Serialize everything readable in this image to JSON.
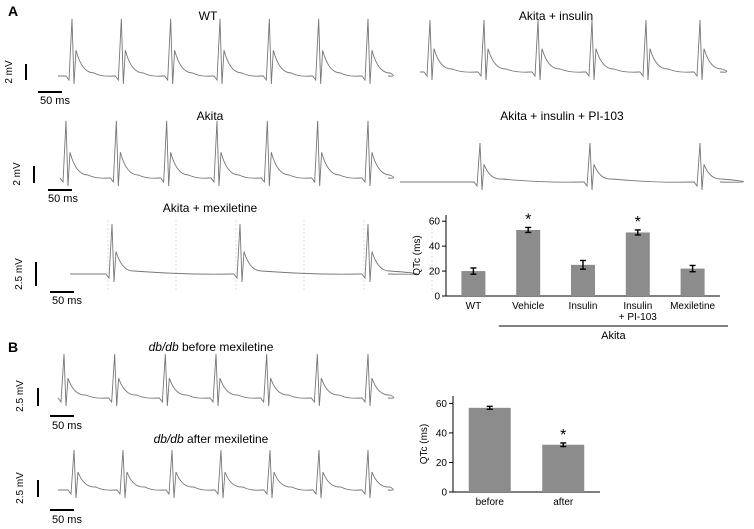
{
  "panels": {
    "A": {
      "letter": "A"
    },
    "B": {
      "letter": "B"
    }
  },
  "traces": [
    {
      "id": "wt",
      "title": "WT",
      "mv_label": "2 mV",
      "ms_label": "50 ms",
      "beats": 7,
      "spike_mv": 2.2,
      "gridlines": false
    },
    {
      "id": "akita-insulin",
      "title": "Akita + insulin",
      "mv_label": "",
      "ms_label": "",
      "beats": 6,
      "spike_mv": 2.0,
      "gridlines": false
    },
    {
      "id": "akita",
      "title": "Akita",
      "mv_label": "2 mV",
      "ms_label": "50 ms",
      "beats": 7,
      "spike_mv": 2.2,
      "gridlines": false
    },
    {
      "id": "akita-insulin-pi103",
      "title": "Akita + insulin + PI-103",
      "mv_label": "",
      "ms_label": "",
      "beats": 3,
      "spike_mv": 1.5,
      "gridlines": false
    },
    {
      "id": "akita-mexiletine",
      "title": "Akita + mexiletine",
      "mv_label": "2.5 mV",
      "ms_label": "50 ms",
      "beats": 3,
      "spike_mv": 2.5,
      "gridlines": true
    },
    {
      "id": "dbdb-before",
      "title_italic": "db/db",
      "title_rest": " before mexiletine",
      "mv_label": "2.5 mV",
      "ms_label": "50 ms",
      "beats": 7,
      "spike_mv": 2.2,
      "gridlines": false
    },
    {
      "id": "dbdb-after",
      "title_italic": "db/db",
      "title_rest": " after mexiletine",
      "mv_label": "2.5 mV",
      "ms_label": "50 ms",
      "beats": 7,
      "spike_mv": 2.0,
      "gridlines": false
    }
  ],
  "chart_data": [
    {
      "type": "bar",
      "ylabel": "QTc (ms)",
      "ylim": [
        0,
        65
      ],
      "yticks": [
        0,
        20,
        40,
        60
      ],
      "categories": [
        "WT",
        "Vehicle",
        "Insulin",
        "Insulin\n+ PI-103",
        "Mexiletine"
      ],
      "values": [
        20,
        53,
        25,
        51,
        22
      ],
      "errors": [
        2.5,
        2,
        3.5,
        2,
        2.5
      ],
      "significant": [
        false,
        true,
        false,
        true,
        false
      ],
      "significance_marker": "*",
      "group_label": "Akita",
      "group_span": [
        1,
        4
      ],
      "bar_color": "#8c8c8c"
    },
    {
      "type": "bar",
      "ylabel": "QTc (ms)",
      "ylim": [
        0,
        65
      ],
      "yticks": [
        0,
        20,
        40,
        60
      ],
      "categories": [
        "before",
        "after"
      ],
      "values": [
        57,
        32
      ],
      "errors": [
        1,
        1.2
      ],
      "significant": [
        false,
        true
      ],
      "significance_marker": "*",
      "bar_color": "#8c8c8c"
    }
  ]
}
